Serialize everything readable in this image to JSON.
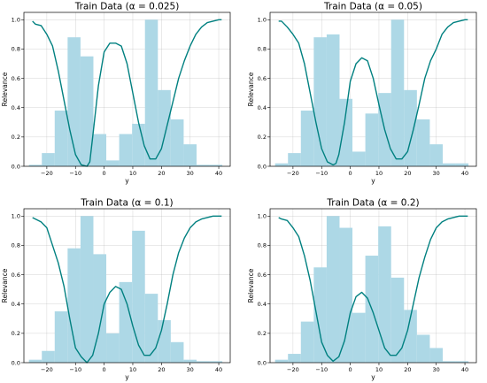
{
  "chart_data": [
    {
      "type": "bar",
      "title": "Train Data (α = 0.025)",
      "xlabel": "y",
      "ylabel": "Relevance",
      "xlim": [
        -28,
        44
      ],
      "ylim": [
        0,
        1.05
      ],
      "xticks": [
        "−20",
        "−10",
        "0",
        "10",
        "20",
        "30",
        "40"
      ],
      "yticks": [
        "0.0",
        "0.2",
        "0.4",
        "0.6",
        "0.8",
        "1.0"
      ],
      "grid": true,
      "colors": {
        "hist": "#add8e6",
        "line": "#008080"
      },
      "histogram": {
        "bin_edges": [
          -26.25,
          -21.75,
          -17.25,
          -12.75,
          -8.25,
          -3.75,
          0.75,
          5.25,
          9.75,
          14.25,
          18.75,
          23.25,
          27.75,
          32.25,
          36.75,
          41.25
        ],
        "values": [
          0.01,
          0.09,
          0.38,
          0.88,
          0.75,
          0.22,
          0.04,
          0.22,
          0.29,
          1.0,
          0.52,
          0.32,
          0.15,
          0.01,
          0.01
        ]
      },
      "relevance_curve": {
        "x": [
          -25,
          -24,
          -22,
          -20,
          -18,
          -16,
          -14,
          -12,
          -10,
          -8,
          -6,
          -5,
          -4,
          -2,
          0,
          2,
          4,
          6,
          8,
          10,
          12,
          14,
          16,
          18,
          20,
          22,
          24,
          26,
          28,
          30,
          32,
          34,
          36,
          38,
          40,
          41
        ],
        "y": [
          0.99,
          0.97,
          0.96,
          0.9,
          0.82,
          0.65,
          0.45,
          0.25,
          0.08,
          0.01,
          0.0,
          0.03,
          0.2,
          0.55,
          0.78,
          0.84,
          0.84,
          0.82,
          0.7,
          0.5,
          0.3,
          0.14,
          0.05,
          0.05,
          0.12,
          0.28,
          0.44,
          0.6,
          0.72,
          0.82,
          0.9,
          0.95,
          0.98,
          0.99,
          1.0,
          1.0
        ]
      }
    },
    {
      "type": "bar",
      "title": "Train Data (α = 0.05)",
      "xlabel": "y",
      "ylabel": "Relevance",
      "xlim": [
        -28,
        44
      ],
      "ylim": [
        0,
        1.05
      ],
      "xticks": [
        "−20",
        "−10",
        "0",
        "10",
        "20",
        "30",
        "40"
      ],
      "yticks": [
        "0.0",
        "0.2",
        "0.4",
        "0.6",
        "0.8",
        "1.0"
      ],
      "grid": true,
      "colors": {
        "hist": "#add8e6",
        "line": "#008080"
      },
      "histogram": {
        "bin_edges": [
          -26.25,
          -21.75,
          -17.25,
          -12.75,
          -8.25,
          -3.75,
          0.75,
          5.25,
          9.75,
          14.25,
          18.75,
          23.25,
          27.75,
          32.25,
          36.75,
          41.25
        ],
        "values": [
          0.02,
          0.09,
          0.38,
          0.88,
          0.9,
          0.46,
          0.1,
          0.36,
          0.5,
          1.0,
          0.52,
          0.32,
          0.15,
          0.02,
          0.02
        ]
      },
      "relevance_curve": {
        "x": [
          -25,
          -24,
          -22,
          -20,
          -18,
          -16,
          -14,
          -12,
          -10,
          -8,
          -6,
          -5,
          -4,
          -2,
          0,
          2,
          4,
          6,
          8,
          10,
          12,
          14,
          16,
          18,
          20,
          22,
          24,
          26,
          28,
          30,
          32,
          34,
          36,
          38,
          40,
          41
        ],
        "y": [
          0.99,
          0.99,
          0.95,
          0.9,
          0.84,
          0.7,
          0.5,
          0.3,
          0.12,
          0.03,
          0.01,
          0.02,
          0.08,
          0.3,
          0.58,
          0.7,
          0.74,
          0.72,
          0.6,
          0.42,
          0.25,
          0.12,
          0.05,
          0.05,
          0.1,
          0.25,
          0.42,
          0.6,
          0.72,
          0.8,
          0.9,
          0.95,
          0.98,
          0.99,
          1.0,
          1.0
        ]
      }
    },
    {
      "type": "bar",
      "title": "Train Data (α = 0.1)",
      "xlabel": "y",
      "ylabel": "Relevance",
      "xlim": [
        -28,
        44
      ],
      "ylim": [
        0,
        1.05
      ],
      "xticks": [
        "−20",
        "−10",
        "0",
        "10",
        "20",
        "30",
        "40"
      ],
      "yticks": [
        "0.0",
        "0.2",
        "0.4",
        "0.6",
        "0.8",
        "1.0"
      ],
      "grid": true,
      "colors": {
        "hist": "#add8e6",
        "line": "#008080"
      },
      "histogram": {
        "bin_edges": [
          -26.25,
          -21.75,
          -17.25,
          -12.75,
          -8.25,
          -3.75,
          0.75,
          5.25,
          9.75,
          14.25,
          18.75,
          23.25,
          27.75,
          32.25,
          36.75,
          41.25
        ],
        "values": [
          0.02,
          0.08,
          0.35,
          0.78,
          1.0,
          0.74,
          0.2,
          0.55,
          0.9,
          0.47,
          0.29,
          0.14,
          0.02,
          0.01,
          0.01
        ]
      },
      "relevance_curve": {
        "x": [
          -25,
          -24,
          -22,
          -20,
          -18,
          -16,
          -14,
          -12,
          -10,
          -8,
          -6,
          -4,
          -2,
          0,
          2,
          4,
          6,
          8,
          10,
          12,
          14,
          16,
          18,
          20,
          22,
          24,
          26,
          28,
          30,
          32,
          34,
          36,
          38,
          40,
          41
        ],
        "y": [
          0.99,
          0.98,
          0.96,
          0.92,
          0.8,
          0.68,
          0.52,
          0.3,
          0.1,
          0.04,
          0.0,
          0.05,
          0.2,
          0.4,
          0.48,
          0.52,
          0.5,
          0.4,
          0.25,
          0.12,
          0.05,
          0.05,
          0.1,
          0.22,
          0.4,
          0.6,
          0.75,
          0.85,
          0.92,
          0.96,
          0.98,
          0.99,
          1.0,
          1.0,
          1.0
        ]
      }
    },
    {
      "type": "bar",
      "title": "Train Data (α = 0.2)",
      "xlabel": "y",
      "ylabel": "Relevance",
      "xlim": [
        -28,
        44
      ],
      "ylim": [
        0,
        1.05
      ],
      "xticks": [
        "−20",
        "−10",
        "0",
        "10",
        "20",
        "30",
        "40"
      ],
      "yticks": [
        "0.0",
        "0.2",
        "0.4",
        "0.6",
        "0.8",
        "1.0"
      ],
      "grid": true,
      "colors": {
        "hist": "#add8e6",
        "line": "#008080"
      },
      "histogram": {
        "bin_edges": [
          -26.25,
          -21.75,
          -17.25,
          -12.75,
          -8.25,
          -3.75,
          0.75,
          5.25,
          9.75,
          14.25,
          18.75,
          23.25,
          27.75,
          32.25,
          36.75,
          41.25
        ],
        "values": [
          0.02,
          0.06,
          0.28,
          0.65,
          1.0,
          0.92,
          0.34,
          0.73,
          0.93,
          0.58,
          0.36,
          0.19,
          0.1,
          0.01,
          0.01
        ]
      },
      "relevance_curve": {
        "x": [
          -25,
          -24,
          -22,
          -20,
          -18,
          -16,
          -14,
          -12,
          -10,
          -8,
          -6,
          -4,
          -2,
          0,
          2,
          4,
          6,
          8,
          10,
          12,
          14,
          16,
          18,
          20,
          22,
          24,
          26,
          28,
          30,
          32,
          34,
          36,
          38,
          40,
          41
        ],
        "y": [
          0.99,
          0.98,
          0.97,
          0.92,
          0.86,
          0.73,
          0.56,
          0.35,
          0.14,
          0.05,
          0.01,
          0.04,
          0.15,
          0.34,
          0.45,
          0.48,
          0.44,
          0.34,
          0.22,
          0.1,
          0.05,
          0.05,
          0.1,
          0.22,
          0.4,
          0.58,
          0.72,
          0.84,
          0.92,
          0.96,
          0.98,
          0.99,
          1.0,
          1.0,
          1.0
        ]
      }
    }
  ]
}
